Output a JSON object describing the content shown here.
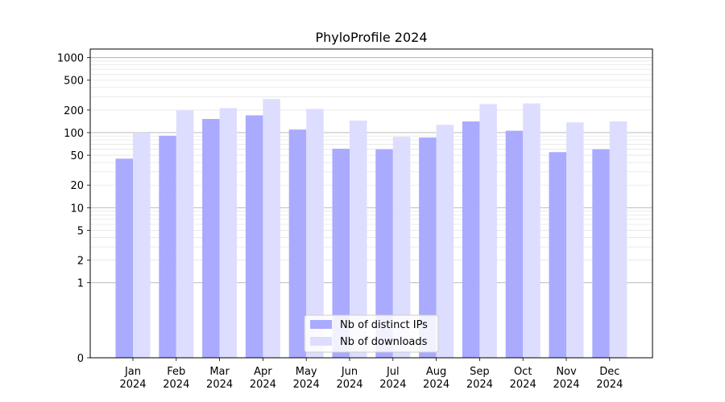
{
  "chart_data": {
    "type": "bar",
    "title": "PhyloProfile 2024",
    "xlabel": "",
    "ylabel": "",
    "yscale": "symlog",
    "ylim": [
      0,
      1300
    ],
    "yticks": [
      0,
      1,
      2,
      5,
      10,
      20,
      50,
      100,
      200,
      500,
      1000
    ],
    "grid": true,
    "legend_position": "bottom-center",
    "categories": [
      "Jan\n2024",
      "Feb\n2024",
      "Mar\n2024",
      "Apr\n2024",
      "May\n2024",
      "Jun\n2024",
      "Jul\n2024",
      "Aug\n2024",
      "Sep\n2024",
      "Oct\n2024",
      "Nov\n2024",
      "Dec\n2024"
    ],
    "series": [
      {
        "name": "Nb of distinct IPs",
        "color": "#aaaaff",
        "values": [
          45,
          91,
          152,
          170,
          110,
          61,
          60,
          86,
          141,
          106,
          55,
          60
        ]
      },
      {
        "name": "Nb of downloads",
        "color": "#ddddff",
        "values": [
          100,
          198,
          212,
          280,
          207,
          145,
          88,
          127,
          240,
          245,
          137,
          141
        ]
      }
    ]
  }
}
